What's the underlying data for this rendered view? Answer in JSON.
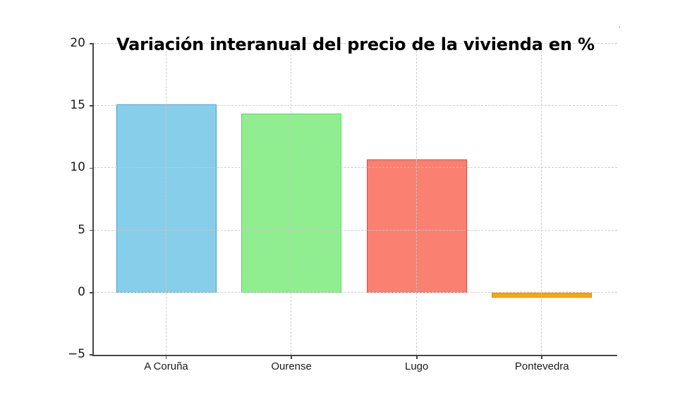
{
  "chart_data": {
    "type": "bar",
    "title": "Variación interanual del precio de la vivienda en %",
    "categories": [
      "A Coruña",
      "Ourense",
      "Lugo",
      "Pontevedra"
    ],
    "values": [
      15.1,
      14.4,
      10.7,
      -0.4
    ],
    "bar_fill_colors": [
      "#87CEEB",
      "#90EE90",
      "#FA8072",
      "#FFA500"
    ],
    "bar_edge_colors": [
      "#42A0CE",
      "#5FD35F",
      "#EF4136",
      "#E08C00"
    ],
    "xlabel": "",
    "ylabel": "",
    "ylim": [
      -5,
      20
    ],
    "yticks": [
      20,
      15,
      10,
      5,
      0,
      -5
    ],
    "ytick_labels": [
      "20",
      "15",
      "10",
      "5",
      "0",
      "−5"
    ],
    "grid": true,
    "grid_color": "#c8c8c8",
    "grid_style": "dashed",
    "grid_above_bars": true,
    "legend_position": "none",
    "bar_relative_width": 0.8,
    "spine_color": "#454545",
    "tick_label_color": "#1a1a1a",
    "title_color": "#000000",
    "background_color": "#ffffff"
  },
  "artifacts": {
    "stray_mark": "’"
  }
}
